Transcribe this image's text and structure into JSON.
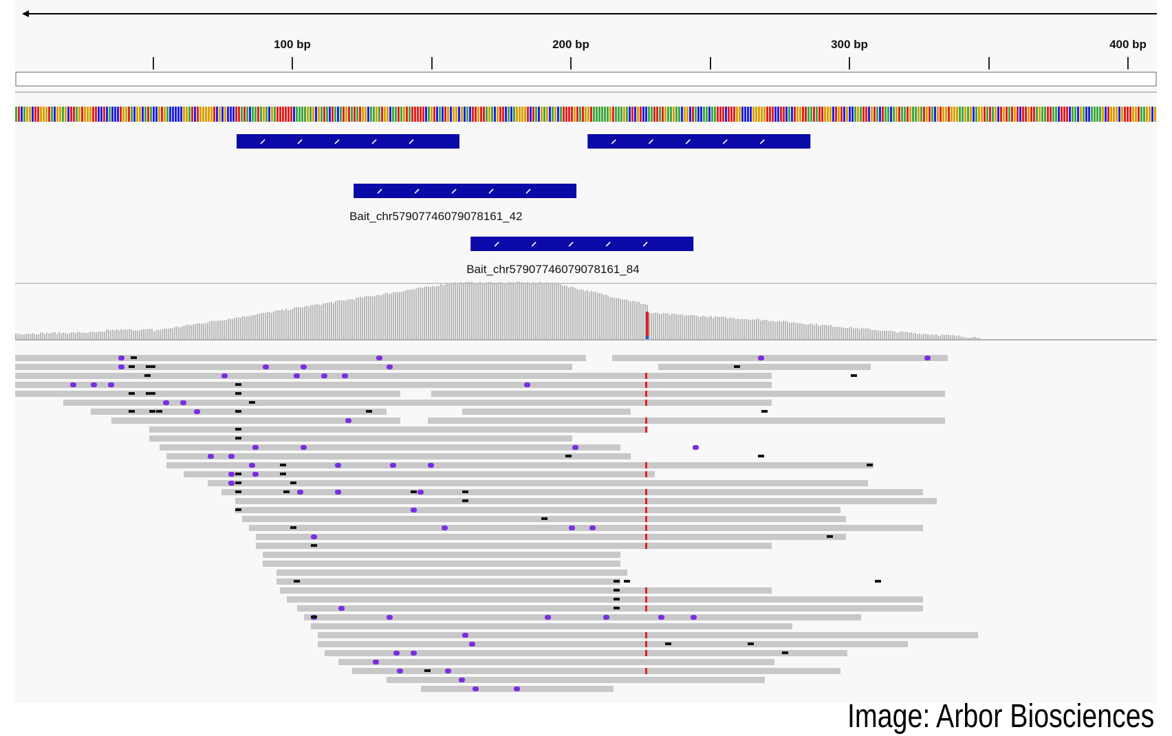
{
  "ruler": {
    "ticks": [
      {
        "label": "100 bp",
        "bp": 100
      },
      {
        "label": "200 bp",
        "bp": 200
      },
      {
        "label": "300 bp",
        "bp": 300
      },
      {
        "label": "400 bp",
        "bp": 400
      }
    ]
  },
  "feature_track": {
    "color": "#0a0aa8",
    "features": [
      {
        "start_bp": 80,
        "end_bp": 160,
        "row": 0,
        "label": ""
      },
      {
        "start_bp": 206,
        "end_bp": 286,
        "row": 0,
        "label": ""
      },
      {
        "start_bp": 122,
        "end_bp": 202,
        "row": 1,
        "label": "Bait_chr57907746079078161_42"
      },
      {
        "start_bp": 164,
        "end_bp": 244,
        "row": 2,
        "label": "Bait_chr57907746079078161_84"
      }
    ]
  },
  "coverage_track": {
    "bar_color": "#b8b8b8",
    "variant_color": "#e02020",
    "variant_bp": 227
  },
  "alignment_track": {
    "read_color": "#c8c8c8",
    "mismatch_color": "#7a2ee0",
    "indel_color": "#111111",
    "variant_bp": 227
  },
  "credit": "Image: Arbor Biosciences"
}
